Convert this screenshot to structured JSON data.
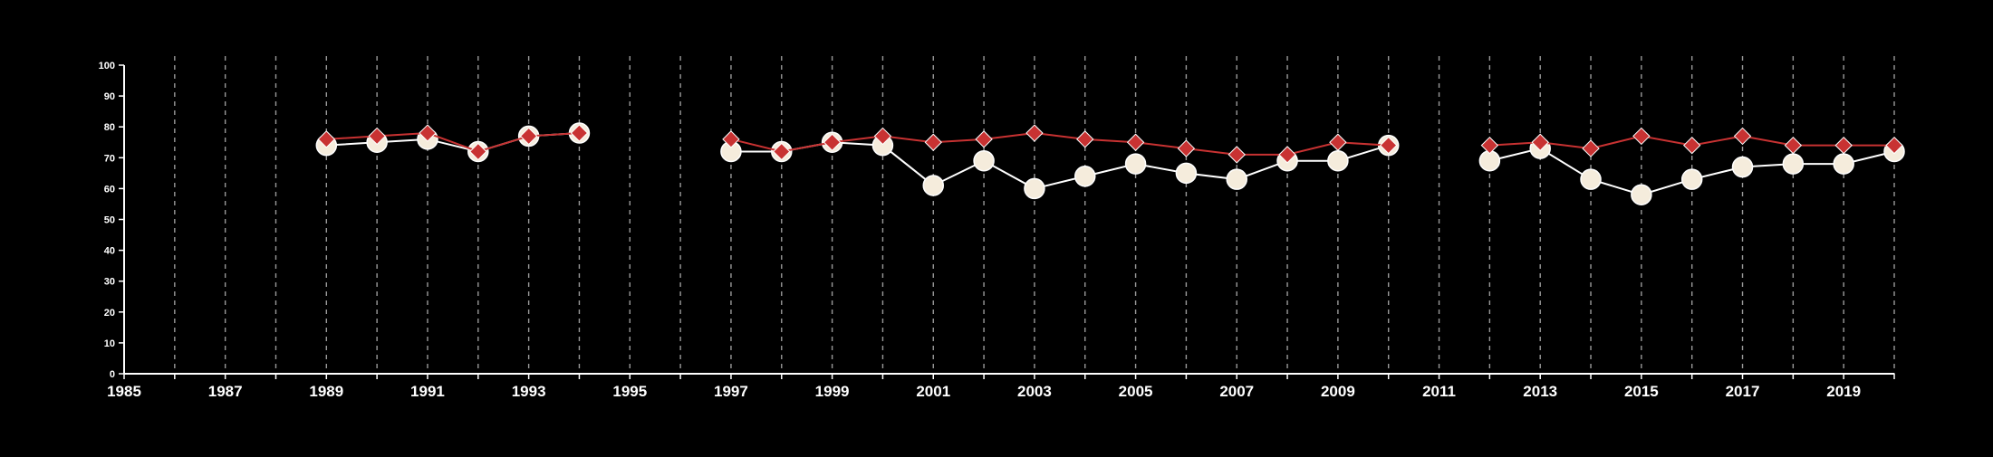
{
  "chart_data": {
    "type": "line",
    "title": "",
    "xlabel": "",
    "ylabel": "",
    "xlim": [
      1985,
      2020
    ],
    "ylim": [
      0,
      100
    ],
    "grid": "vertical dashed lines at each year",
    "legend": "none",
    "x_ticks": [
      "1985",
      "1987",
      "1989",
      "1991",
      "1993",
      "1995",
      "1997",
      "1999",
      "2001",
      "2003",
      "2005",
      "2007",
      "2009",
      "2011",
      "2013",
      "2015",
      "2017",
      "2019"
    ],
    "y_ticks": [
      "0",
      "10",
      "20",
      "30",
      "40",
      "50",
      "60",
      "70",
      "80",
      "90",
      "100"
    ],
    "series": [
      {
        "marker": "circle",
        "color": "#f5ecdc",
        "line_color": "#ffffff",
        "points": [
          {
            "x": 1989,
            "y": 74
          },
          {
            "x": 1990,
            "y": 75
          },
          {
            "x": 1991,
            "y": 76
          },
          {
            "x": 1992,
            "y": 72
          },
          {
            "x": 1993,
            "y": 77
          },
          {
            "x": 1994,
            "y": 78
          },
          {
            "x": 1997,
            "y": 72
          },
          {
            "x": 1998,
            "y": 72
          },
          {
            "x": 1999,
            "y": 75
          },
          {
            "x": 2000,
            "y": 74
          },
          {
            "x": 2001,
            "y": 61
          },
          {
            "x": 2002,
            "y": 69
          },
          {
            "x": 2003,
            "y": 60
          },
          {
            "x": 2004,
            "y": 64
          },
          {
            "x": 2005,
            "y": 68
          },
          {
            "x": 2006,
            "y": 65
          },
          {
            "x": 2007,
            "y": 63
          },
          {
            "x": 2008,
            "y": 69
          },
          {
            "x": 2009,
            "y": 69
          },
          {
            "x": 2010,
            "y": 74
          },
          {
            "x": 2012,
            "y": 69
          },
          {
            "x": 2013,
            "y": 73
          },
          {
            "x": 2014,
            "y": 63
          },
          {
            "x": 2015,
            "y": 58
          },
          {
            "x": 2016,
            "y": 63
          },
          {
            "x": 2017,
            "y": 67
          },
          {
            "x": 2018,
            "y": 68
          },
          {
            "x": 2019,
            "y": 68
          },
          {
            "x": 2020,
            "y": 72
          }
        ]
      },
      {
        "marker": "diamond",
        "color": "#c83232",
        "line_color": "#c83232",
        "points": [
          {
            "x": 1989,
            "y": 76
          },
          {
            "x": 1990,
            "y": 77
          },
          {
            "x": 1991,
            "y": 78
          },
          {
            "x": 1992,
            "y": 72
          },
          {
            "x": 1993,
            "y": 77
          },
          {
            "x": 1994,
            "y": 78
          },
          {
            "x": 1997,
            "y": 76
          },
          {
            "x": 1998,
            "y": 72
          },
          {
            "x": 1999,
            "y": 75
          },
          {
            "x": 2000,
            "y": 77
          },
          {
            "x": 2001,
            "y": 75
          },
          {
            "x": 2002,
            "y": 76
          },
          {
            "x": 2003,
            "y": 78
          },
          {
            "x": 2004,
            "y": 76
          },
          {
            "x": 2005,
            "y": 75
          },
          {
            "x": 2006,
            "y": 73
          },
          {
            "x": 2007,
            "y": 71
          },
          {
            "x": 2008,
            "y": 71
          },
          {
            "x": 2009,
            "y": 75
          },
          {
            "x": 2010,
            "y": 74
          },
          {
            "x": 2012,
            "y": 74
          },
          {
            "x": 2013,
            "y": 75
          },
          {
            "x": 2014,
            "y": 73
          },
          {
            "x": 2015,
            "y": 77
          },
          {
            "x": 2016,
            "y": 74
          },
          {
            "x": 2017,
            "y": 77
          },
          {
            "x": 2018,
            "y": 74
          },
          {
            "x": 2019,
            "y": 74
          },
          {
            "x": 2020,
            "y": 74
          }
        ]
      }
    ],
    "colors": {
      "background": "#000000",
      "axis": "#ffffff",
      "grid": "#9a9a9a"
    }
  }
}
